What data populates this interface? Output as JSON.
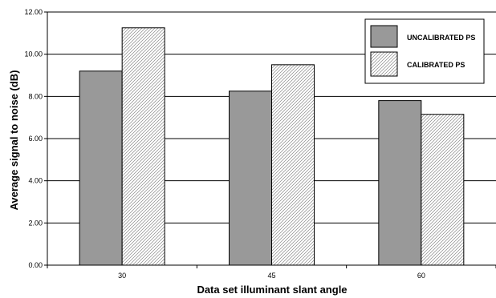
{
  "chart_data": {
    "type": "bar",
    "categories": [
      "30",
      "45",
      "60"
    ],
    "series": [
      {
        "name": "UNCALIBRATED PS",
        "values": [
          9.2,
          8.25,
          7.8
        ],
        "fill": "#999999",
        "pattern": "solid"
      },
      {
        "name": "CALIBRATED PS",
        "values": [
          11.25,
          9.5,
          7.15
        ],
        "fill": "#ffffff",
        "pattern": "diagonal-hatch"
      }
    ],
    "xlabel": "Data set illuminant slant angle",
    "ylabel": "Average signal to noise (dB)",
    "ylim": [
      0,
      12
    ],
    "ytick_step": 2,
    "ytick_labels": [
      "0.00",
      "2.00",
      "4.00",
      "6.00",
      "8.00",
      "10.00",
      "12.00"
    ],
    "grid": true,
    "legend_position": "top-right"
  }
}
